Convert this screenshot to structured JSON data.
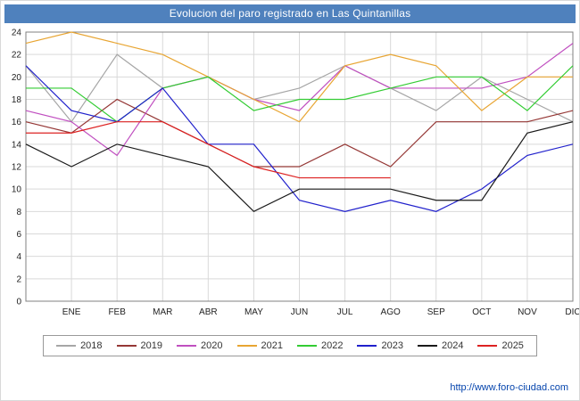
{
  "title": "Evolucion del paro registrado en Las Quintanillas",
  "footer": {
    "url": "http://www.foro-ciudad.com"
  },
  "chart_data": {
    "type": "line",
    "title": "Evolucion del paro registrado en Las Quintanillas",
    "xlabel": "",
    "ylabel": "",
    "ylim": [
      0,
      24
    ],
    "y_tick_step": 2,
    "grid": true,
    "legend_position": "bottom",
    "x_tick_labels": [
      "ENE",
      "FEB",
      "MAR",
      "ABR",
      "MAY",
      "JUN",
      "JUL",
      "AGO",
      "SEP",
      "OCT",
      "NOV",
      "DIC"
    ],
    "first_point_unlabeled": true,
    "series": [
      {
        "name": "2018",
        "color": "#a6a6a6",
        "values": [
          21,
          16,
          22,
          19,
          20,
          18,
          19,
          21,
          19,
          17,
          20,
          18,
          16
        ]
      },
      {
        "name": "2019",
        "color": "#953735",
        "values": [
          16,
          15,
          18,
          16,
          14,
          12,
          12,
          14,
          12,
          16,
          16,
          16,
          17
        ]
      },
      {
        "name": "2020",
        "color": "#c04fc0",
        "values": [
          17,
          16,
          13,
          19,
          20,
          18,
          17,
          21,
          19,
          19,
          19,
          20,
          23
        ]
      },
      {
        "name": "2021",
        "color": "#e8a532",
        "values": [
          23,
          24,
          23,
          22,
          20,
          18,
          16,
          21,
          22,
          21,
          17,
          20,
          20
        ]
      },
      {
        "name": "2022",
        "color": "#33cc33",
        "values": [
          19,
          19,
          16,
          19,
          20,
          17,
          18,
          18,
          19,
          20,
          20,
          17,
          21
        ]
      },
      {
        "name": "2023",
        "color": "#2020cc",
        "values": [
          21,
          17,
          16,
          19,
          14,
          14,
          9,
          8,
          9,
          8,
          10,
          13,
          14
        ]
      },
      {
        "name": "2024",
        "color": "#1a1a1a",
        "values": [
          14,
          12,
          14,
          13,
          12,
          8,
          10,
          10,
          10,
          9,
          9,
          15,
          16
        ]
      },
      {
        "name": "2025",
        "color": "#dd2222",
        "values": [
          15,
          15,
          16,
          16,
          14,
          12,
          11,
          11,
          11,
          null,
          null,
          null,
          null
        ]
      }
    ]
  }
}
